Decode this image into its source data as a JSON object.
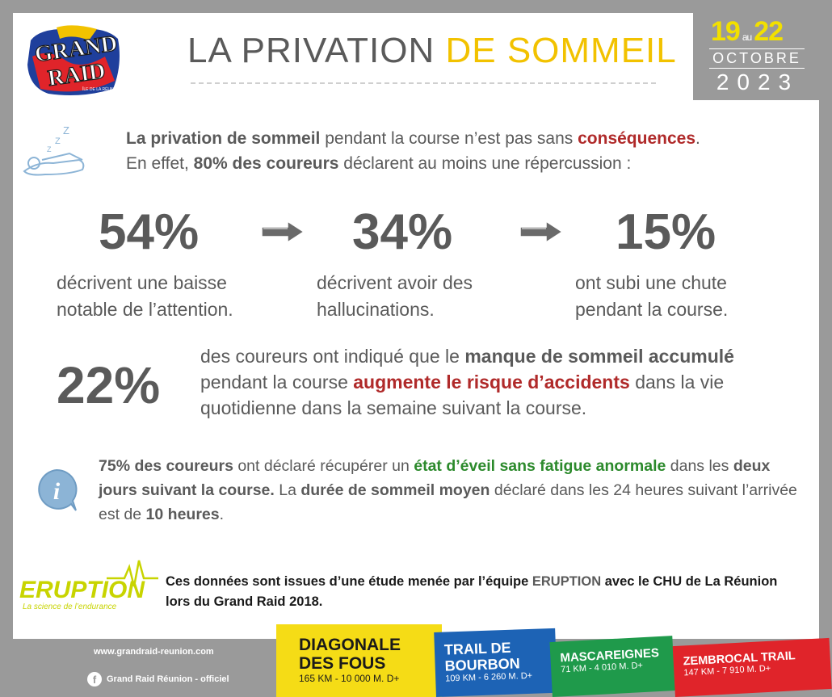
{
  "logo": {
    "text": "GRAND RAID",
    "subtext": "ÎLE DE LA RÉUNION"
  },
  "title": {
    "part1": "LA PRIVATION",
    "part2": "DE SOMMEIL"
  },
  "date": {
    "start": "19",
    "au": "au",
    "end": "22",
    "month": "OCTOBRE",
    "year": "2023"
  },
  "intro": {
    "l1_bold": "La privation de sommeil",
    "l1_mid": " pendant la course n’est pas sans ",
    "l1_red": "conséquences",
    "l1_end": ".",
    "l2_start": "En effet, ",
    "l2_bold": "80% des coureurs",
    "l2_end": " déclarent au moins une répercussion :"
  },
  "stats": [
    {
      "value": "54%",
      "desc_line1": "décrivent une baisse",
      "desc_line2": "notable de l’attention."
    },
    {
      "value": "34%",
      "desc_line1": "décrivent avoir des",
      "desc_line2": "hallucinations."
    },
    {
      "value": "15%",
      "desc_line1": "ont subi une chute",
      "desc_line2": "pendant la course."
    }
  ],
  "p22": {
    "value": "22%",
    "t1": "des coureurs ont indiqué que le ",
    "b1": "manque de sommeil accumulé",
    "t2": " pendant la course ",
    "r1": "augmente le risque d’accidents",
    "t3": " dans la vie quotidienne dans la semaine suivant la course."
  },
  "info": {
    "b1": "75% des coureurs",
    "t1": " ont déclaré récupérer un ",
    "g1": "état d’éveil sans fatigue anormale",
    "t2": " dans les ",
    "b2": "deux jours suivant la course.",
    "t3": " La ",
    "b3": "durée de sommeil moyen",
    "t4": " déclaré dans les 24 heures suivant l’arrivée est de ",
    "b4": "10 heures",
    "t5": "."
  },
  "eruption": {
    "name": "ERUPTION",
    "tagline": "La science de l’endurance"
  },
  "source": {
    "t1": "Ces données sont issues d’une étude menée par l’équipe ",
    "name": "ERUPTION",
    "t2": " avec le CHU de La Réunion lors du Grand Raid 2018."
  },
  "footer": {
    "url": "www.grandraid-reunion.com",
    "facebook": "Grand Raid Réunion - officiel",
    "facebook_icon": "f"
  },
  "races": [
    {
      "name_l1": "DIAGONALE",
      "name_l2": "DES FOUS",
      "stats": "165 KM - 10 000 M. D+",
      "color": "#f5dc16"
    },
    {
      "name_l1": "TRAIL DE",
      "name_l2": "BOURBON",
      "stats": "109 KM - 6 260 M. D+",
      "color": "#1d63b5"
    },
    {
      "name_l1": "MASCAREIGNES",
      "stats": "71 KM - 4 010 M. D+",
      "color": "#1f9a4b"
    },
    {
      "name_l1": "ZEMBROCAL TRAIL",
      "stats": "147 KM - 7 910 M. D+",
      "color": "#e0242a"
    }
  ],
  "colors": {
    "accent_yellow": "#f2c200",
    "red": "#b02a2a",
    "green": "#2c8a2c",
    "text_grey": "#5a5a5a",
    "frame_grey": "#9a9a9a"
  },
  "icons": {
    "sleep": "sleeping-person-icon",
    "info": "info-icon",
    "arrow": "right-arrow-icon"
  }
}
